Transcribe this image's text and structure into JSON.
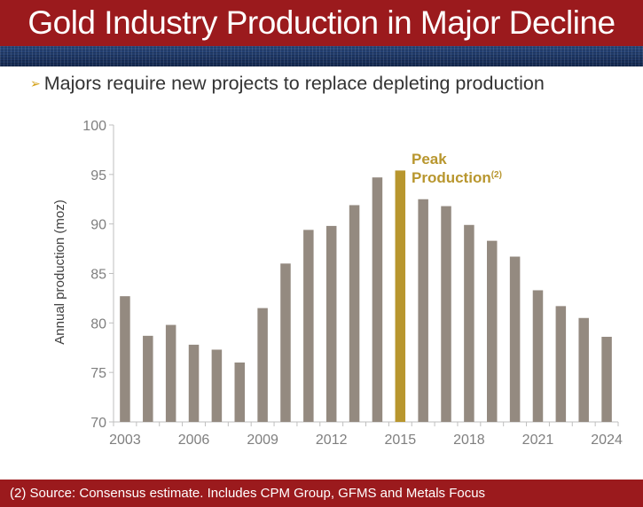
{
  "title": "Gold Industry Production in Major Decline",
  "bullet": {
    "arrow": "➢",
    "text": "Majors require new projects to replace depleting production"
  },
  "footnote": "(2) Source: Consensus estimate. Includes CPM Group, GFMS and Metals Focus",
  "colors": {
    "header": "#9b1a1d",
    "bar": "#948a80",
    "peak_bar": "#b8962e"
  },
  "chart_data": {
    "type": "bar",
    "ylabel": "Annual production (moz)",
    "ylim": [
      70,
      100
    ],
    "yticks": [
      70,
      75,
      80,
      85,
      90,
      95,
      100
    ],
    "categories": [
      "2003",
      "2004",
      "2005",
      "2006",
      "2007",
      "2008",
      "2009",
      "2010",
      "2011",
      "2012",
      "2013",
      "2014",
      "2015",
      "2016",
      "2017",
      "2018",
      "2019",
      "2020",
      "2021",
      "2022",
      "2023",
      "2024"
    ],
    "xtick_labels": [
      "2003",
      "2006",
      "2009",
      "2012",
      "2015",
      "2018",
      "2021",
      "2024"
    ],
    "values": [
      82.7,
      78.7,
      79.8,
      77.8,
      77.3,
      76.0,
      81.5,
      86.0,
      89.4,
      89.8,
      91.9,
      94.7,
      95.4,
      92.5,
      91.8,
      89.9,
      88.3,
      86.7,
      83.3,
      81.7,
      80.5,
      78.6
    ],
    "highlight_category": "2015",
    "annotation": {
      "line1": "Peak",
      "line2": "Production",
      "sup": "(2)"
    }
  }
}
